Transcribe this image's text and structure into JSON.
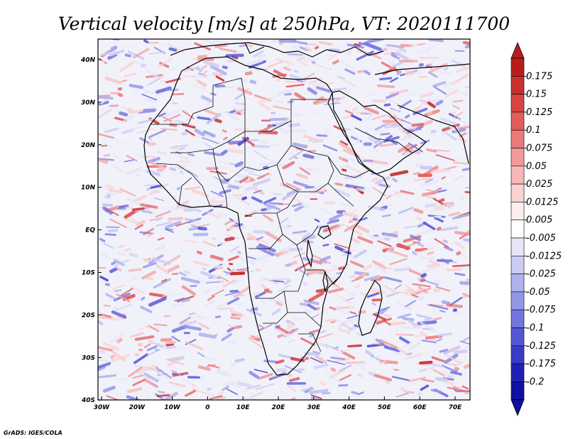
{
  "map": {
    "title": "Vertical velocity [m/s] at 250hPa, VT: 2020111700",
    "lon_labels": [
      "30W",
      "20W",
      "10W",
      "0",
      "10E",
      "20E",
      "30E",
      "40E",
      "50E",
      "60E",
      "70E"
    ],
    "lat_labels": [
      "40N",
      "30N",
      "20N",
      "10N",
      "EQ",
      "10S",
      "20S",
      "30S",
      "40S"
    ],
    "lon_range": [
      -30,
      75
    ],
    "lat_range": [
      -40,
      45
    ],
    "credit": "GrADS: IGES/COLA"
  },
  "colorbar": {
    "levels": [
      "0.175",
      "0.15",
      "0.125",
      "0.1",
      "0.075",
      "0.05",
      "0.025",
      "0.0125",
      "0.005",
      "-0.005",
      "-0.0125",
      "-0.025",
      "-0.05",
      "-0.075",
      "-0.1",
      "-0.125",
      "-0.175",
      "-0.2"
    ],
    "colors": [
      "#b81d1d",
      "#c93030",
      "#d84444",
      "#e45c5c",
      "#ec7a7a",
      "#f29a9a",
      "#f6b8b8",
      "#f9d2d2",
      "#fdeeee",
      "#ffffff",
      "#e6e6f8",
      "#cccdf3",
      "#b0b2ee",
      "#9496e8",
      "#7476e0",
      "#5557d6",
      "#3a3bc8",
      "#2021b4",
      "#1010a0"
    ],
    "top_color": "#b81d1d",
    "bottom_color": "#1010a0"
  },
  "palette": {
    "neutral": "#f1f1fa",
    "red": "#e07a7a",
    "blue": "#8e90e4"
  }
}
